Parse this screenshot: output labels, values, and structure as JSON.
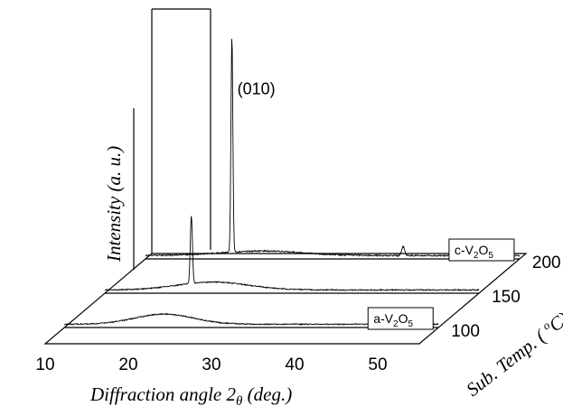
{
  "chart_data": {
    "type": "line",
    "style": "3d-waterfall",
    "xlabel_prefix": "Diffraction angle 2",
    "xlabel_symbol": "θ",
    "xlabel_suffix": "  (deg.)",
    "ylabel": "Intensity (a. u.)",
    "zlabel_prefix": "Sub. Temp. ( ",
    "zlabel_degree": "o",
    "zlabel_suffix": "C)",
    "x_ticks": [
      10,
      20,
      30,
      40,
      50
    ],
    "xlim": [
      10,
      55
    ],
    "z_ticks": [
      100,
      150,
      200
    ],
    "annotations": [
      {
        "text": "(010)",
        "x": 20.4,
        "z": 200
      }
    ],
    "legend_boxes": [
      {
        "text_main": "c-V",
        "sub1": "2",
        "mid": "O",
        "sub2": "5",
        "z": 200
      },
      {
        "text_main": "a-V",
        "sub1": "2",
        "mid": "O",
        "sub2": "5",
        "z": 100
      }
    ],
    "series": [
      {
        "z": 100,
        "peaks": [],
        "hump": {
          "center": 22,
          "width": 5,
          "height": 0.045
        },
        "noise": 0.01
      },
      {
        "z": 150,
        "peaks": [
          {
            "x": 20.4,
            "height": 0.3,
            "width": 0.18
          }
        ],
        "hump": {
          "center": 23,
          "width": 6,
          "height": 0.035
        },
        "noise": 0.01
      },
      {
        "z": 200,
        "peaks": [
          {
            "x": 20.4,
            "height": 0.96,
            "width": 0.16
          },
          {
            "x": 41.0,
            "height": 0.04,
            "width": 0.25
          }
        ],
        "hump": {
          "center": 24,
          "width": 7,
          "height": 0.02
        },
        "noise": 0.012
      }
    ]
  }
}
